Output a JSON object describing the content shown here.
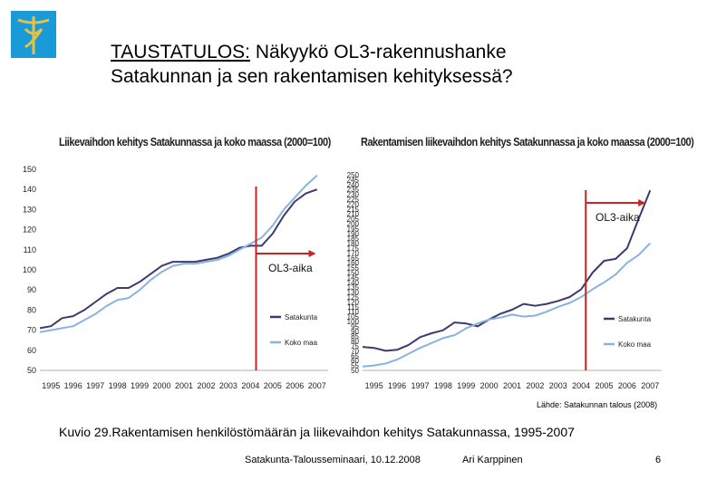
{
  "header": {
    "title_underlined": "TAUSTATULOS:",
    "title_rest": " Näkyykö OL3-rakennushanke",
    "title_line2": "Satakunnan ja sen rakentamisen kehityksessä?"
  },
  "colors": {
    "satakunta": "#3d3a6e",
    "koko_maa": "#8ab2e0",
    "marker": "#cc2222",
    "logo_bg": "#1a9ad6",
    "logo_fg": "#e8c140"
  },
  "chart_data": [
    {
      "type": "line",
      "title": "Liikevaihdon kehitys Satakunnassa ja koko maassa (2000=100)",
      "x_ticks": [
        "1995",
        "1996",
        "1997",
        "1998",
        "1999",
        "2000",
        "2001",
        "2002",
        "2003",
        "2004",
        "2005",
        "2006",
        "2007"
      ],
      "y_ticks": [
        50,
        60,
        70,
        80,
        90,
        100,
        110,
        120,
        130,
        140,
        150
      ],
      "ylim": [
        50,
        150
      ],
      "xlim": [
        1995.0,
        2008.0
      ],
      "annotation": {
        "label": "OL3-aika",
        "x": 2004.75
      },
      "series": [
        {
          "name": "Satakunta",
          "x": [
            1995.0,
            1995.5,
            1996.0,
            1996.5,
            1997.0,
            1997.5,
            1998.0,
            1998.5,
            1999.0,
            1999.5,
            2000.0,
            2000.5,
            2001.0,
            2001.5,
            2002.0,
            2002.5,
            2003.0,
            2003.5,
            2004.0,
            2004.5,
            2005.0,
            2005.5,
            2006.0,
            2006.5,
            2007.0,
            2007.5
          ],
          "values": [
            71,
            72,
            76,
            77,
            80,
            84,
            88,
            91,
            91,
            94,
            98,
            102,
            104,
            104,
            104,
            105,
            106,
            108,
            111,
            112,
            112,
            118,
            127,
            134,
            138,
            140
          ]
        },
        {
          "name": "Koko maa",
          "x": [
            1995.0,
            1995.5,
            1996.0,
            1996.5,
            1997.0,
            1997.5,
            1998.0,
            1998.5,
            1999.0,
            1999.5,
            2000.0,
            2000.5,
            2001.0,
            2001.5,
            2002.0,
            2002.5,
            2003.0,
            2003.5,
            2004.0,
            2004.5,
            2005.0,
            2005.5,
            2006.0,
            2006.5,
            2007.0,
            2007.5
          ],
          "values": [
            69,
            70,
            71,
            72,
            75,
            78,
            82,
            85,
            86,
            90,
            95,
            99,
            102,
            103,
            103,
            104,
            105,
            107,
            110,
            113,
            116,
            122,
            130,
            136,
            142,
            147
          ]
        }
      ]
    },
    {
      "type": "line",
      "title": "Rakentamisen liikevaihdon kehitys Satakunnassa ja koko maassa (2000=100)",
      "x_ticks": [
        "1995",
        "1996",
        "1997",
        "1998",
        "1999",
        "2000",
        "2001",
        "2002",
        "2003",
        "2004",
        "2005",
        "2006",
        "2007"
      ],
      "y_ticks": [
        50,
        55,
        60,
        65,
        70,
        75,
        80,
        85,
        90,
        95,
        100,
        105,
        110,
        115,
        120,
        125,
        130,
        135,
        140,
        145,
        150,
        155,
        160,
        165,
        170,
        175,
        180,
        185,
        190,
        195,
        200,
        205,
        210,
        215,
        220,
        225,
        230,
        235,
        240,
        245,
        250
      ],
      "ylim": [
        50,
        250
      ],
      "xlim": [
        1995.0,
        2008.0
      ],
      "annotation": {
        "label": "OL3-aika",
        "x": 2004.7
      },
      "series": [
        {
          "name": "Satakunta",
          "x": [
            1995.0,
            1995.5,
            1996.0,
            1996.5,
            1997.0,
            1997.5,
            1998.0,
            1998.5,
            1999.0,
            1999.5,
            2000.0,
            2000.5,
            2001.0,
            2001.5,
            2002.0,
            2002.5,
            2003.0,
            2003.5,
            2004.0,
            2004.5,
            2005.0,
            2005.5,
            2006.0,
            2006.5,
            2007.0,
            2007.5
          ],
          "values": [
            74,
            73,
            70,
            71,
            76,
            84,
            88,
            91,
            99,
            98,
            95,
            102,
            108,
            112,
            118,
            116,
            118,
            121,
            125,
            133,
            150,
            162,
            164,
            175,
            205,
            234
          ]
        },
        {
          "name": "Koko maa",
          "x": [
            1995.0,
            1995.5,
            1996.0,
            1996.5,
            1997.0,
            1997.5,
            1998.0,
            1998.5,
            1999.0,
            1999.5,
            2000.0,
            2000.5,
            2001.0,
            2001.5,
            2002.0,
            2002.5,
            2003.0,
            2003.5,
            2004.0,
            2004.5,
            2005.0,
            2005.5,
            2006.0,
            2006.5,
            2007.0,
            2007.5
          ],
          "values": [
            54,
            55,
            57,
            61,
            67,
            73,
            78,
            83,
            86,
            93,
            98,
            102,
            104,
            107,
            105,
            106,
            110,
            115,
            119,
            125,
            133,
            140,
            148,
            160,
            168,
            180
          ]
        }
      ]
    }
  ],
  "source": "Lähde: Satakunnan talous (2008)",
  "caption": "Kuvio 29.Rakentamisen henkilöstömäärän ja liikevaihdon kehitys Satakunnassa, 1995-2007",
  "footer": {
    "event": "Satakunta-Talousseminaari, 10.12.2008",
    "author": "Ari Karppinen",
    "page": "6"
  }
}
